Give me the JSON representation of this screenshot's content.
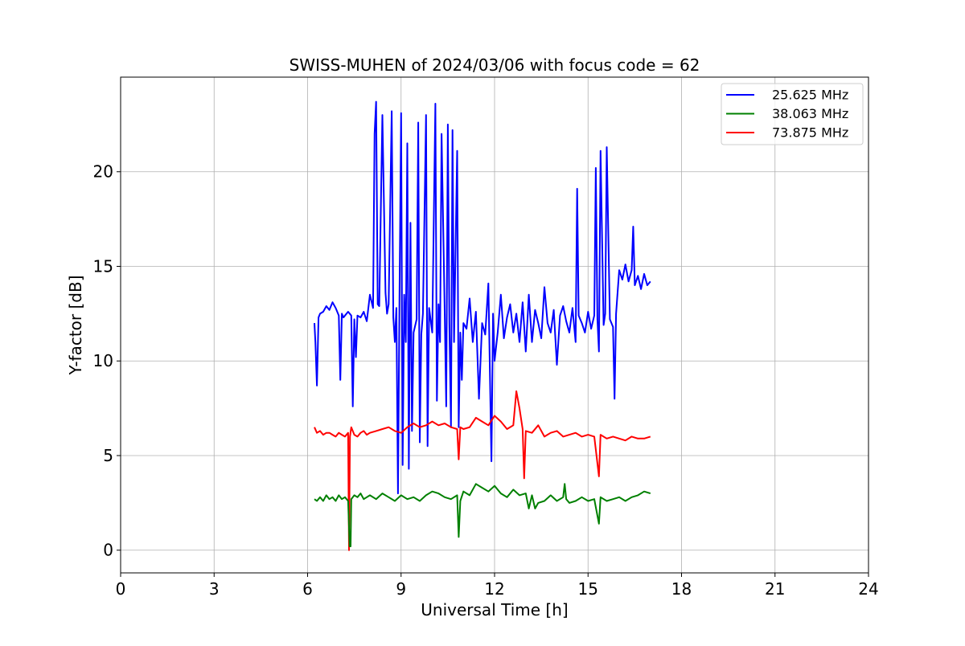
{
  "chart_data": {
    "type": "line",
    "title": "SWISS-MUHEN of 2024/03/06 with focus code = 62",
    "xlabel": "Universal Time [h]",
    "ylabel": "Y-factor [dB]",
    "xlim": [
      0,
      24
    ],
    "ylim": [
      -1.2,
      25
    ],
    "xticks": [
      0,
      3,
      6,
      9,
      12,
      15,
      18,
      21,
      24
    ],
    "yticks": [
      0,
      5,
      10,
      15,
      20
    ],
    "grid": true,
    "legend": "top-right",
    "series": [
      {
        "name": "25.625 MHz",
        "color": "#0000ff",
        "x": [
          6.22,
          6.25,
          6.3,
          6.35,
          6.4,
          6.5,
          6.6,
          6.7,
          6.8,
          6.9,
          7.0,
          7.05,
          7.1,
          7.15,
          7.2,
          7.3,
          7.4,
          7.45,
          7.5,
          7.55,
          7.6,
          7.7,
          7.8,
          7.9,
          8.0,
          8.1,
          8.15,
          8.2,
          8.25,
          8.3,
          8.4,
          8.5,
          8.55,
          8.6,
          8.7,
          8.75,
          8.8,
          8.85,
          8.9,
          8.95,
          9.0,
          9.05,
          9.1,
          9.15,
          9.2,
          9.25,
          9.3,
          9.35,
          9.4,
          9.5,
          9.55,
          9.6,
          9.65,
          9.7,
          9.8,
          9.85,
          9.9,
          10.0,
          10.1,
          10.15,
          10.2,
          10.25,
          10.3,
          10.4,
          10.45,
          10.5,
          10.55,
          10.6,
          10.65,
          10.7,
          10.8,
          10.85,
          10.9,
          10.95,
          11.0,
          11.1,
          11.2,
          11.3,
          11.4,
          11.5,
          11.6,
          11.7,
          11.8,
          11.9,
          11.95,
          12.0,
          12.1,
          12.2,
          12.3,
          12.4,
          12.5,
          12.6,
          12.7,
          12.8,
          12.9,
          13.0,
          13.1,
          13.2,
          13.3,
          13.4,
          13.5,
          13.6,
          13.7,
          13.8,
          13.9,
          14.0,
          14.1,
          14.2,
          14.3,
          14.4,
          14.5,
          14.6,
          14.65,
          14.7,
          14.8,
          14.9,
          15.0,
          15.1,
          15.2,
          15.25,
          15.3,
          15.35,
          15.4,
          15.5,
          15.55,
          15.6,
          15.7,
          15.8,
          15.85,
          15.9,
          16.0,
          16.1,
          16.2,
          16.3,
          16.4,
          16.45,
          16.5,
          16.6,
          16.7,
          16.8,
          16.9,
          17.0
        ],
        "y": [
          12.0,
          11.0,
          8.7,
          12.3,
          12.5,
          12.6,
          12.9,
          12.7,
          13.1,
          12.8,
          12.4,
          9.0,
          12.5,
          12.3,
          12.4,
          12.6,
          12.4,
          7.6,
          12.2,
          10.2,
          12.4,
          12.3,
          12.6,
          12.1,
          13.5,
          12.8,
          22.0,
          23.7,
          13.0,
          12.9,
          23.0,
          13.6,
          12.5,
          13.0,
          23.2,
          12.3,
          11.0,
          12.8,
          3.0,
          13.5,
          23.1,
          4.5,
          13.5,
          11.0,
          21.5,
          4.3,
          17.3,
          6.3,
          11.5,
          12.2,
          22.6,
          5.7,
          11.4,
          12.5,
          23.0,
          5.5,
          12.8,
          11.5,
          23.6,
          7.9,
          13.0,
          11.0,
          22.0,
          12.6,
          7.6,
          22.5,
          12.0,
          6.5,
          22.2,
          11.0,
          21.1,
          6.5,
          11.5,
          9.0,
          12.0,
          11.7,
          13.3,
          11.0,
          12.6,
          8.0,
          12.0,
          11.4,
          14.1,
          4.7,
          12.5,
          10.0,
          11.5,
          13.5,
          11.2,
          12.3,
          13.0,
          11.5,
          12.5,
          11.0,
          13.1,
          10.5,
          13.5,
          11.0,
          12.7,
          12.0,
          11.2,
          13.9,
          12.0,
          11.5,
          12.7,
          9.8,
          12.4,
          12.9,
          12.1,
          11.5,
          12.8,
          11.0,
          19.1,
          12.4,
          12.0,
          11.5,
          12.6,
          11.7,
          12.4,
          20.2,
          12.2,
          10.5,
          21.1,
          11.9,
          12.5,
          21.3,
          12.2,
          11.8,
          8.0,
          12.5,
          14.8,
          14.3,
          15.1,
          14.2,
          14.8,
          17.1,
          14.0,
          14.5,
          13.8,
          14.6,
          14.0,
          14.2
        ]
      },
      {
        "name": "38.063 MHz",
        "color": "#008000",
        "x": [
          6.22,
          6.3,
          6.4,
          6.5,
          6.6,
          6.7,
          6.8,
          6.9,
          7.0,
          7.1,
          7.2,
          7.3,
          7.35,
          7.38,
          7.4,
          7.5,
          7.6,
          7.7,
          7.8,
          7.9,
          8.0,
          8.2,
          8.4,
          8.6,
          8.8,
          9.0,
          9.2,
          9.4,
          9.6,
          9.8,
          10.0,
          10.2,
          10.4,
          10.6,
          10.8,
          10.85,
          10.9,
          11.0,
          11.2,
          11.4,
          11.6,
          11.8,
          12.0,
          12.2,
          12.4,
          12.6,
          12.8,
          13.0,
          13.1,
          13.2,
          13.3,
          13.4,
          13.6,
          13.8,
          14.0,
          14.2,
          14.25,
          14.3,
          14.4,
          14.6,
          14.8,
          15.0,
          15.2,
          15.35,
          15.4,
          15.6,
          15.8,
          16.0,
          16.2,
          16.4,
          16.6,
          16.8,
          17.0
        ],
        "y": [
          2.7,
          2.6,
          2.8,
          2.6,
          2.9,
          2.7,
          2.8,
          2.6,
          2.9,
          2.7,
          2.8,
          2.6,
          0.2,
          0.2,
          2.7,
          2.9,
          2.8,
          3.0,
          2.7,
          2.8,
          2.9,
          2.7,
          3.0,
          2.8,
          2.6,
          2.9,
          2.7,
          2.8,
          2.6,
          2.9,
          3.1,
          3.0,
          2.8,
          2.7,
          2.9,
          0.7,
          2.6,
          3.1,
          2.9,
          3.5,
          3.3,
          3.1,
          3.4,
          3.0,
          2.8,
          3.2,
          2.9,
          3.0,
          2.2,
          2.9,
          2.2,
          2.5,
          2.6,
          2.9,
          2.6,
          2.8,
          3.5,
          2.7,
          2.5,
          2.6,
          2.8,
          2.6,
          2.7,
          1.4,
          2.8,
          2.6,
          2.7,
          2.8,
          2.6,
          2.8,
          2.9,
          3.1,
          3.0
        ]
      },
      {
        "name": "73.875 MHz",
        "color": "#ff0000",
        "x": [
          6.22,
          6.3,
          6.4,
          6.5,
          6.6,
          6.7,
          6.8,
          6.9,
          7.0,
          7.1,
          7.2,
          7.3,
          7.33,
          7.36,
          7.4,
          7.5,
          7.6,
          7.7,
          7.8,
          7.9,
          8.0,
          8.2,
          8.4,
          8.6,
          8.8,
          9.0,
          9.2,
          9.4,
          9.6,
          9.8,
          10.0,
          10.2,
          10.4,
          10.6,
          10.8,
          10.85,
          10.9,
          11.0,
          11.2,
          11.4,
          11.6,
          11.8,
          12.0,
          12.2,
          12.4,
          12.6,
          12.7,
          12.8,
          12.9,
          12.95,
          13.0,
          13.2,
          13.4,
          13.6,
          13.8,
          14.0,
          14.2,
          14.4,
          14.6,
          14.8,
          15.0,
          15.2,
          15.35,
          15.4,
          15.6,
          15.8,
          16.0,
          16.2,
          16.4,
          16.6,
          16.8,
          17.0
        ],
        "y": [
          6.5,
          6.2,
          6.3,
          6.1,
          6.2,
          6.2,
          6.1,
          6.0,
          6.2,
          6.1,
          6.0,
          6.2,
          0.0,
          6.0,
          6.5,
          6.1,
          6.0,
          6.2,
          6.3,
          6.1,
          6.2,
          6.3,
          6.4,
          6.5,
          6.3,
          6.2,
          6.5,
          6.7,
          6.5,
          6.6,
          6.8,
          6.6,
          6.7,
          6.5,
          6.4,
          4.8,
          6.5,
          6.4,
          6.5,
          7.0,
          6.8,
          6.6,
          7.1,
          6.8,
          6.4,
          6.6,
          8.4,
          7.5,
          6.4,
          3.8,
          6.3,
          6.2,
          6.6,
          6.0,
          6.2,
          6.3,
          6.0,
          6.1,
          6.2,
          6.0,
          6.1,
          6.0,
          3.9,
          6.1,
          5.9,
          6.0,
          5.9,
          5.8,
          6.0,
          5.9,
          5.9,
          6.0
        ]
      }
    ]
  }
}
